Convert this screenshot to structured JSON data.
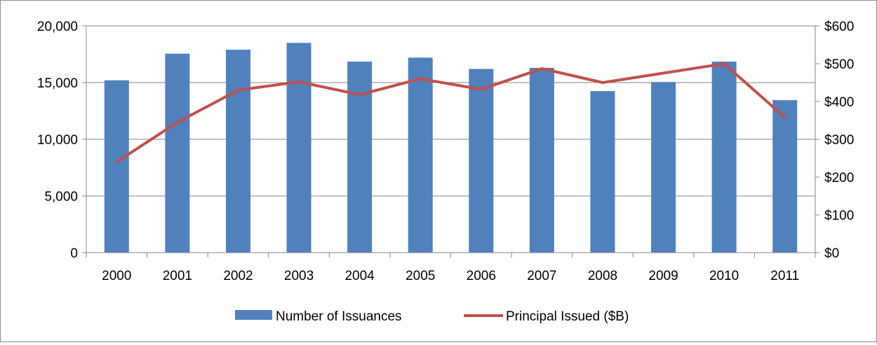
{
  "chart_data": {
    "type": "bar",
    "categories": [
      "2000",
      "2001",
      "2002",
      "2003",
      "2004",
      "2005",
      "2006",
      "2007",
      "2008",
      "2009",
      "2010",
      "2011"
    ],
    "series": [
      {
        "name": "Number of Issuances",
        "type": "bar",
        "axis": "left",
        "color": "#4F81BD",
        "values": [
          15200,
          17550,
          17900,
          18500,
          16850,
          17200,
          16200,
          16300,
          14250,
          15050,
          16850,
          13450
        ]
      },
      {
        "name": "Principal Issued ($B)",
        "type": "line",
        "axis": "right",
        "color": "#C0504D",
        "values": [
          240,
          345,
          430,
          452,
          418,
          460,
          432,
          487,
          450,
          475,
          500,
          358
        ]
      }
    ],
    "y_left": {
      "ylim": [
        0,
        20000
      ],
      "ticks": [
        "0",
        "5,000",
        "10,000",
        "15,000",
        "20,000"
      ]
    },
    "y_right": {
      "ylim": [
        0,
        600
      ],
      "ticks": [
        "$0",
        "$100",
        "$200",
        "$300",
        "$400",
        "$500",
        "$600"
      ]
    },
    "grid": true,
    "legend_position": "bottom"
  }
}
